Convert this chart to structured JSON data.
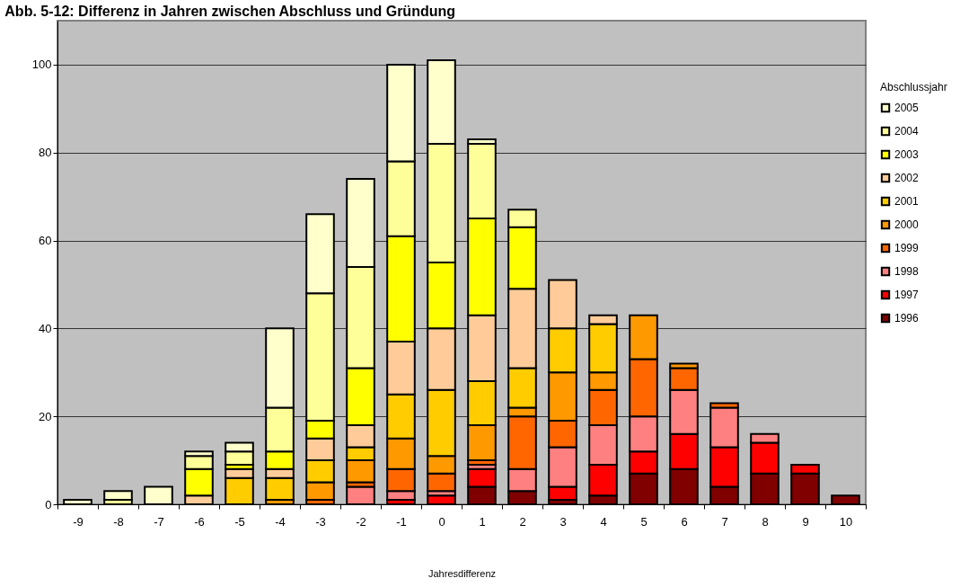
{
  "chart_data": {
    "type": "bar",
    "title": "Abb. 5-12: Differenz in Jahren zwischen Abschluss und Gründung",
    "xlabel": "Jahresdifferenz",
    "legend_title": "Abschlussjahr",
    "categories": [
      "-9",
      "-8",
      "-7",
      "-6",
      "-5",
      "-4",
      "-3",
      "-2",
      "-1",
      "0",
      "1",
      "2",
      "3",
      "4",
      "5",
      "6",
      "7",
      "8",
      "9",
      "10"
    ],
    "stacked": true,
    "grid": "y",
    "legend": "right",
    "ylim": [
      0,
      110
    ],
    "yticks": [
      0,
      20,
      40,
      60,
      80,
      100
    ],
    "series": [
      {
        "name": "1996",
        "color": "#800000",
        "values": [
          null,
          null,
          null,
          null,
          null,
          null,
          null,
          null,
          null,
          null,
          4,
          3,
          1,
          2,
          7,
          8,
          4,
          7,
          7,
          2
        ]
      },
      {
        "name": "1997",
        "color": "#ff0000",
        "values": [
          null,
          null,
          null,
          null,
          null,
          null,
          null,
          null,
          1,
          2,
          4,
          null,
          3,
          7,
          5,
          8,
          9,
          7,
          2,
          null
        ]
      },
      {
        "name": "1998",
        "color": "#ff8080",
        "values": [
          null,
          null,
          null,
          null,
          null,
          null,
          null,
          4,
          2,
          1,
          1,
          5,
          9,
          9,
          8,
          10,
          9,
          2,
          null,
          null
        ]
      },
      {
        "name": "1999",
        "color": "#ff6600",
        "values": [
          null,
          null,
          null,
          null,
          null,
          null,
          1,
          1,
          5,
          4,
          1,
          12,
          6,
          8,
          13,
          5,
          1,
          null,
          null,
          null
        ]
      },
      {
        "name": "2000",
        "color": "#ff9900",
        "values": [
          null,
          null,
          null,
          null,
          null,
          1,
          4,
          5,
          7,
          4,
          8,
          2,
          11,
          4,
          10,
          1,
          null,
          null,
          null,
          null
        ]
      },
      {
        "name": "2001",
        "color": "#ffcc00",
        "values": [
          null,
          null,
          null,
          null,
          6,
          5,
          5,
          3,
          10,
          15,
          10,
          9,
          10,
          11,
          null,
          null,
          null,
          null,
          null,
          null
        ]
      },
      {
        "name": "2002",
        "color": "#ffcc99",
        "values": [
          null,
          null,
          null,
          2,
          2,
          2,
          5,
          5,
          12,
          14,
          15,
          18,
          11,
          2,
          null,
          null,
          null,
          null,
          null,
          null
        ]
      },
      {
        "name": "2003",
        "color": "#ffff00",
        "values": [
          null,
          null,
          null,
          6,
          1,
          4,
          4,
          13,
          24,
          15,
          22,
          14,
          null,
          null,
          null,
          null,
          null,
          null,
          null,
          null
        ]
      },
      {
        "name": "2004",
        "color": "#ffff99",
        "values": [
          null,
          1,
          null,
          3,
          3,
          10,
          29,
          23,
          17,
          27,
          17,
          4,
          null,
          null,
          null,
          null,
          null,
          null,
          null,
          null
        ]
      },
      {
        "name": "2005",
        "color": "#ffffcc",
        "values": [
          1,
          2,
          4,
          1,
          2,
          18,
          18,
          20,
          22,
          19,
          1,
          null,
          null,
          null,
          null,
          null,
          null,
          null,
          null,
          null
        ]
      }
    ]
  }
}
